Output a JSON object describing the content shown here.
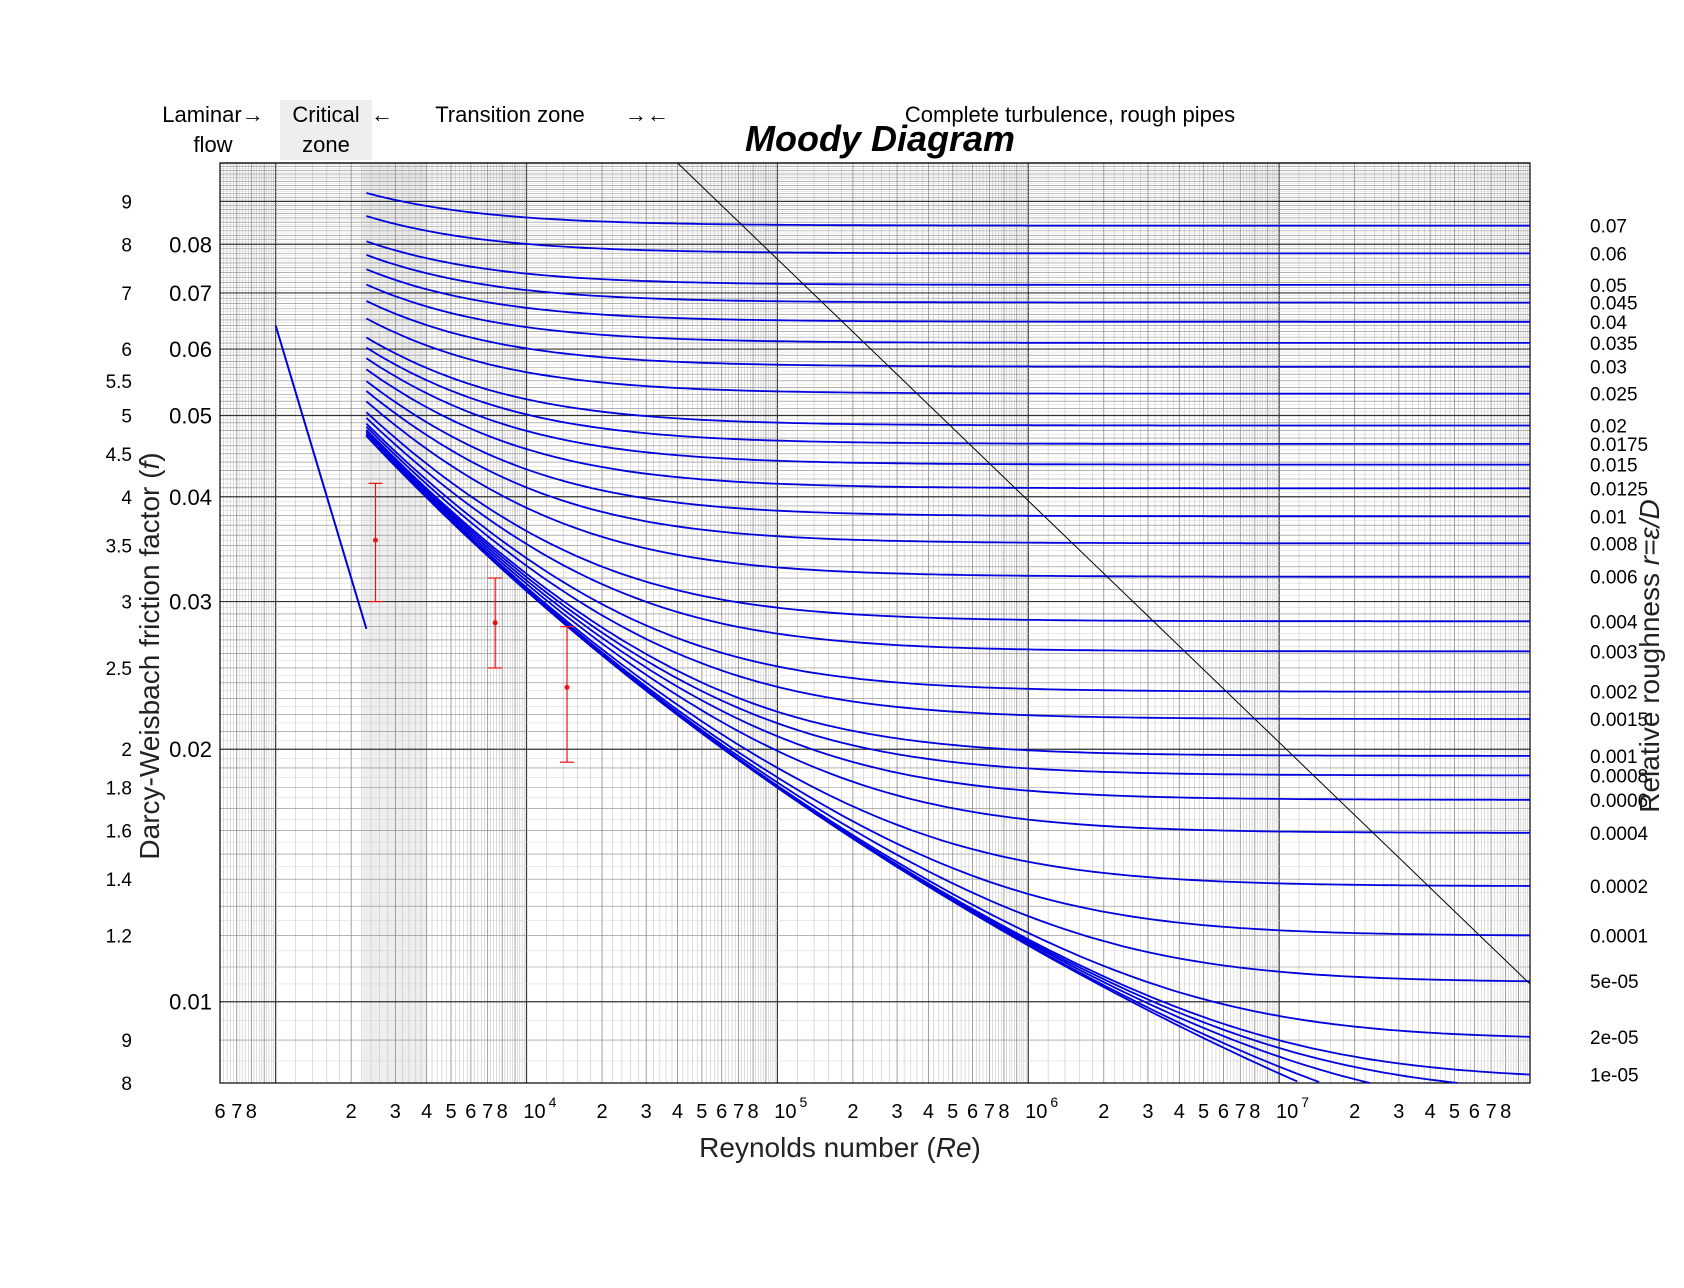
{
  "chart_data": {
    "type": "line",
    "title": "Moody Diagram",
    "xlabel": "Reynolds number  (Re)",
    "xlabel_prefix": "Reynolds number  (",
    "xlabel_var": "Re",
    "xlabel_suffix": ")",
    "ylabel": "Darcy-Weisbach friction factor  (f)",
    "ylabel_prefix": "Darcy-Weisbach friction factor  (",
    "ylabel_var": "f",
    "ylabel_suffix": ")",
    "y2label": "Relative roughness  r=ε/D",
    "y2label_prefix": "Relative roughness  ",
    "y2label_var": "r=ε/D",
    "x_scale": "log",
    "y_scale": "log",
    "xlim": [
      600,
      100000000
    ],
    "ylim": [
      0.008,
      0.1
    ],
    "grid": true,
    "x_tick_labels": [
      {
        "value": 600,
        "label": "6"
      },
      {
        "value": 700,
        "label": "7"
      },
      {
        "value": 800,
        "label": "8"
      },
      {
        "value": 2000,
        "label": "2"
      },
      {
        "value": 3000,
        "label": "3"
      },
      {
        "value": 4000,
        "label": "4"
      },
      {
        "value": 5000,
        "label": "5"
      },
      {
        "value": 6000,
        "label": "6"
      },
      {
        "value": 7000,
        "label": "7"
      },
      {
        "value": 8000,
        "label": "8"
      },
      {
        "value": 10000,
        "label": "10",
        "exp": "4"
      },
      {
        "value": 20000,
        "label": "2"
      },
      {
        "value": 30000,
        "label": "3"
      },
      {
        "value": 40000,
        "label": "4"
      },
      {
        "value": 50000,
        "label": "5"
      },
      {
        "value": 60000,
        "label": "6"
      },
      {
        "value": 70000,
        "label": "7"
      },
      {
        "value": 80000,
        "label": "8"
      },
      {
        "value": 100000,
        "label": "10",
        "exp": "5"
      },
      {
        "value": 200000,
        "label": "2"
      },
      {
        "value": 300000,
        "label": "3"
      },
      {
        "value": 400000,
        "label": "4"
      },
      {
        "value": 500000,
        "label": "5"
      },
      {
        "value": 600000,
        "label": "6"
      },
      {
        "value": 700000,
        "label": "7"
      },
      {
        "value": 800000,
        "label": "8"
      },
      {
        "value": 1000000,
        "label": "10",
        "exp": "6"
      },
      {
        "value": 2000000,
        "label": "2"
      },
      {
        "value": 3000000,
        "label": "3"
      },
      {
        "value": 4000000,
        "label": "4"
      },
      {
        "value": 5000000,
        "label": "5"
      },
      {
        "value": 6000000,
        "label": "6"
      },
      {
        "value": 7000000,
        "label": "7"
      },
      {
        "value": 8000000,
        "label": "8"
      },
      {
        "value": 10000000,
        "label": "10",
        "exp": "7"
      },
      {
        "value": 20000000,
        "label": "2"
      },
      {
        "value": 30000000,
        "label": "3"
      },
      {
        "value": 40000000,
        "label": "4"
      },
      {
        "value": 50000000,
        "label": "5"
      },
      {
        "value": 60000000,
        "label": "6"
      },
      {
        "value": 70000000,
        "label": "7"
      },
      {
        "value": 80000000,
        "label": "8"
      }
    ],
    "y_tick_labels": [
      {
        "value": 0.08,
        "label": "0.08"
      },
      {
        "value": 0.07,
        "label": "0.07"
      },
      {
        "value": 0.06,
        "label": "0.06"
      },
      {
        "value": 0.05,
        "label": "0.05"
      },
      {
        "value": 0.04,
        "label": "0.04"
      },
      {
        "value": 0.03,
        "label": "0.03"
      },
      {
        "value": 0.02,
        "label": "0.02"
      },
      {
        "value": 0.01,
        "label": "0.01"
      }
    ],
    "y_minor_labels": [
      {
        "value": 0.09,
        "label": "9"
      },
      {
        "value": 0.08,
        "label": "8"
      },
      {
        "value": 0.07,
        "label": "7"
      },
      {
        "value": 0.06,
        "label": "6"
      },
      {
        "value": 0.055,
        "label": "5.5"
      },
      {
        "value": 0.05,
        "label": "5"
      },
      {
        "value": 0.045,
        "label": "4.5"
      },
      {
        "value": 0.04,
        "label": "4"
      },
      {
        "value": 0.035,
        "label": "3.5"
      },
      {
        "value": 0.03,
        "label": "3"
      },
      {
        "value": 0.025,
        "label": "2.5"
      },
      {
        "value": 0.02,
        "label": "2"
      },
      {
        "value": 0.018,
        "label": "1.8"
      },
      {
        "value": 0.016,
        "label": "1.6"
      },
      {
        "value": 0.014,
        "label": "1.4"
      },
      {
        "value": 0.012,
        "label": "1.2"
      },
      {
        "value": 0.009,
        "label": "9"
      },
      {
        "value": 0.008,
        "label": "8"
      }
    ],
    "roughness_labels": [
      "0.07",
      "0.06",
      "0.05",
      "0.045",
      "0.04",
      "0.035",
      "0.03",
      "0.025",
      "0.02",
      "0.0175",
      "0.015",
      "0.0125",
      "0.01",
      "0.008",
      "0.006",
      "0.004",
      "0.003",
      "0.002",
      "0.0015",
      "0.001",
      "0.0008",
      "0.0006",
      "0.0004",
      "0.0002",
      "0.0001",
      "5e-05",
      "2e-05",
      "1e-05"
    ],
    "roughness_values": [
      0.07,
      0.06,
      0.05,
      0.045,
      0.04,
      0.035,
      0.03,
      0.025,
      0.02,
      0.0175,
      0.015,
      0.0125,
      0.01,
      0.008,
      0.006,
      0.004,
      0.003,
      0.002,
      0.0015,
      0.001,
      0.0008,
      0.0006,
      0.0004,
      0.0002,
      0.0001,
      5e-05,
      2e-05,
      1e-05
    ],
    "extra_curves_r": [
      7.5e-06,
      5e-06,
      2.5e-06,
      1e-06
    ],
    "laminar_line": {
      "x": [
        1000,
        2300
      ],
      "f_formula": "64/Re"
    },
    "rough_boundary": {
      "x": [
        40000,
        100000000
      ],
      "y": [
        0.1,
        0.0105
      ]
    },
    "critical_zone": [
      2300,
      4000
    ],
    "error_bars": [
      {
        "x": 2500,
        "y": 0.0355,
        "ylow": 0.03,
        "yhigh": 0.0415
      },
      {
        "x": 7500,
        "y": 0.0283,
        "ylow": 0.025,
        "yhigh": 0.032
      },
      {
        "x": 14500,
        "y": 0.0237,
        "ylow": 0.0193,
        "yhigh": 0.028
      }
    ],
    "colors": {
      "curves": "#0000dd",
      "error_bars": "#ee1111",
      "boundary": "#000000",
      "grid_major": "#333333",
      "grid_minor": "#888888",
      "zone": "#eeeeee"
    }
  },
  "zones": {
    "laminar": "Laminar→\nflow",
    "laminar_line1": "Laminar→",
    "laminar_line2": "flow",
    "critical_line1": "Critical",
    "critical_line2": "zone",
    "critical_arrow": "←",
    "transition": "Transition zone",
    "transition_arrows": "→←",
    "turbulence": "Complete turbulence, rough pipes"
  }
}
